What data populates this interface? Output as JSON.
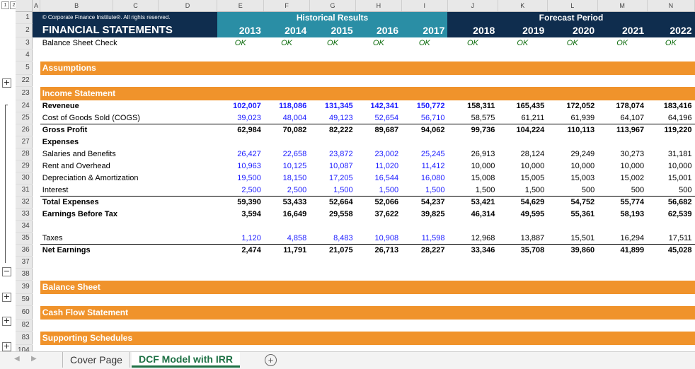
{
  "outline": {
    "levels": [
      "1",
      "2"
    ]
  },
  "col_headers": [
    "A",
    "B",
    "C",
    "D",
    "E",
    "F",
    "G",
    "H",
    "I",
    "J",
    "K",
    "L",
    "M",
    "N"
  ],
  "copyright": "© Corporate Finance Institute®. All rights reserved.",
  "title": "FINANCIAL STATEMENTS",
  "group_hist": "Historical Results",
  "group_fore": "Forecast Period",
  "years": [
    "2013",
    "2014",
    "2015",
    "2016",
    "2017",
    "2018",
    "2019",
    "2020",
    "2021",
    "2022"
  ],
  "check": {
    "label": "Balance Sheet Check",
    "values": [
      "OK",
      "OK",
      "OK",
      "OK",
      "OK",
      "OK",
      "OK",
      "OK",
      "OK",
      "OK"
    ]
  },
  "sections": {
    "assumptions": "Assumptions",
    "income": "Income Statement",
    "balance": "Balance Sheet",
    "cashflow": "Cash Flow Statement",
    "supporting": "Supporting Schedules"
  },
  "rows": [
    {
      "label": "Reveneue",
      "bold": true,
      "v": [
        "102,007",
        "118,086",
        "131,345",
        "142,341",
        "150,772",
        "158,311",
        "165,435",
        "172,052",
        "178,074",
        "183,416"
      ]
    },
    {
      "label": "Cost of Goods Sold (COGS)",
      "bold": false,
      "v": [
        "39,023",
        "48,004",
        "49,123",
        "52,654",
        "56,710",
        "58,575",
        "61,211",
        "61,939",
        "64,107",
        "64,196"
      ]
    },
    {
      "label": "Gross Profit",
      "bold": true,
      "v": [
        "62,984",
        "70,082",
        "82,222",
        "89,687",
        "94,062",
        "99,736",
        "104,224",
        "110,113",
        "113,967",
        "119,220"
      ]
    },
    {
      "label": "Expenses",
      "bold": true,
      "v": [
        "",
        "",
        "",
        "",
        "",
        "",
        "",
        "",
        "",
        ""
      ]
    },
    {
      "label": "Salaries and Benefits",
      "bold": false,
      "v": [
        "26,427",
        "22,658",
        "23,872",
        "23,002",
        "25,245",
        "26,913",
        "28,124",
        "29,249",
        "30,273",
        "31,181"
      ]
    },
    {
      "label": "Rent and Overhead",
      "bold": false,
      "v": [
        "10,963",
        "10,125",
        "10,087",
        "11,020",
        "11,412",
        "10,000",
        "10,000",
        "10,000",
        "10,000",
        "10,000"
      ]
    },
    {
      "label": "Depreciation & Amortization",
      "bold": false,
      "v": [
        "19,500",
        "18,150",
        "17,205",
        "16,544",
        "16,080",
        "15,008",
        "15,005",
        "15,003",
        "15,002",
        "15,001"
      ]
    },
    {
      "label": "Interest",
      "bold": false,
      "v": [
        "2,500",
        "2,500",
        "1,500",
        "1,500",
        "1,500",
        "1,500",
        "1,500",
        "500",
        "500",
        "500"
      ]
    },
    {
      "label": "Total Expenses",
      "bold": true,
      "v": [
        "59,390",
        "53,433",
        "52,664",
        "52,066",
        "54,237",
        "53,421",
        "54,629",
        "54,752",
        "55,774",
        "56,682"
      ]
    },
    {
      "label": "Earnings Before Tax",
      "bold": true,
      "v": [
        "3,594",
        "16,649",
        "29,558",
        "37,622",
        "39,825",
        "46,314",
        "49,595",
        "55,361",
        "58,193",
        "62,539"
      ]
    },
    {
      "label": "",
      "bold": false,
      "v": [
        "",
        "",
        "",
        "",
        "",
        "",
        "",
        "",
        "",
        ""
      ]
    },
    {
      "label": "Taxes",
      "bold": false,
      "v": [
        "1,120",
        "4,858",
        "8,483",
        "10,908",
        "11,598",
        "12,968",
        "13,887",
        "15,501",
        "16,294",
        "17,511"
      ]
    },
    {
      "label": "Net Earnings",
      "bold": true,
      "v": [
        "2,474",
        "11,791",
        "21,075",
        "26,713",
        "28,227",
        "33,346",
        "35,708",
        "39,860",
        "41,899",
        "45,028"
      ]
    }
  ],
  "row_numbers": {
    "r1": "1",
    "r2": "2",
    "r3": "3",
    "r4": "4",
    "r5": "5",
    "r22": "22",
    "r23": "23",
    "body": [
      "24",
      "25",
      "26",
      "27",
      "28",
      "29",
      "30",
      "31",
      "32",
      "33",
      "34",
      "35",
      "36"
    ],
    "r37": "37",
    "r38": "38",
    "r39": "39",
    "r59": "59",
    "r60": "60",
    "r82": "82",
    "r83": "83",
    "r104": "104"
  },
  "tabs": [
    "Cover Page",
    "DCF Model with IRR"
  ],
  "colors": {
    "navy": "#0f2d4e",
    "teal": "#2a8ea5",
    "orange": "#f0932b",
    "input_blue": "#1a1aff",
    "ok_green": "#0b6b0b",
    "active_tab": "#1e7145"
  }
}
